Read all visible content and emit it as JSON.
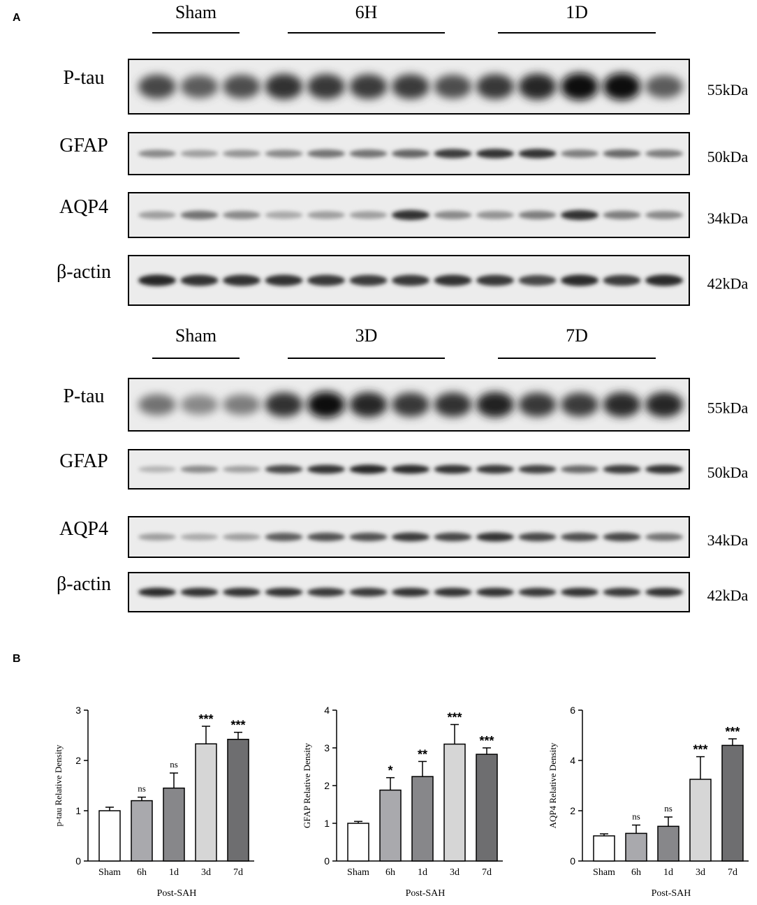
{
  "panel_a": {
    "label": "A",
    "blocks": [
      {
        "groups": [
          "Sham",
          "6H",
          "1D"
        ],
        "rows": [
          {
            "protein": "P-tau",
            "size": "55kDa",
            "intensities": [
              0.75,
              0.65,
              0.72,
              0.85,
              0.82,
              0.8,
              0.8,
              0.72,
              0.82,
              0.9,
              1.0,
              1.0,
              0.65
            ]
          },
          {
            "protein": "GFAP",
            "size": "50kDa",
            "intensities": [
              0.45,
              0.35,
              0.4,
              0.45,
              0.55,
              0.55,
              0.62,
              0.8,
              0.85,
              0.85,
              0.5,
              0.6,
              0.5
            ]
          },
          {
            "protein": "AQP4",
            "size": "34kDa",
            "intensities": [
              0.35,
              0.55,
              0.45,
              0.3,
              0.35,
              0.35,
              0.85,
              0.45,
              0.4,
              0.5,
              0.85,
              0.5,
              0.45
            ]
          },
          {
            "protein": "β-actin",
            "size": "42kDa",
            "intensities": [
              0.9,
              0.85,
              0.85,
              0.85,
              0.82,
              0.8,
              0.82,
              0.85,
              0.82,
              0.75,
              0.88,
              0.8,
              0.88
            ]
          }
        ]
      },
      {
        "groups": [
          "Sham",
          "3D",
          "7D"
        ],
        "rows": [
          {
            "protein": "P-tau",
            "size": "55kDa",
            "intensities": [
              0.55,
              0.45,
              0.5,
              0.85,
              1.0,
              0.9,
              0.82,
              0.85,
              0.92,
              0.82,
              0.8,
              0.88,
              0.9
            ]
          },
          {
            "protein": "GFAP",
            "size": "50kDa",
            "intensities": [
              0.25,
              0.45,
              0.35,
              0.75,
              0.85,
              0.9,
              0.88,
              0.85,
              0.82,
              0.78,
              0.6,
              0.8,
              0.85
            ]
          },
          {
            "protein": "AQP4",
            "size": "34kDa",
            "intensities": [
              0.35,
              0.3,
              0.35,
              0.65,
              0.7,
              0.7,
              0.8,
              0.75,
              0.85,
              0.75,
              0.72,
              0.75,
              0.55
            ]
          },
          {
            "protein": "β-actin",
            "size": "42kDa",
            "intensities": [
              0.88,
              0.85,
              0.85,
              0.85,
              0.82,
              0.82,
              0.85,
              0.85,
              0.85,
              0.82,
              0.85,
              0.82,
              0.85
            ]
          }
        ]
      }
    ]
  },
  "panel_b": {
    "label": "B"
  },
  "chart_data": [
    {
      "type": "bar",
      "categories": [
        "Sham",
        "6h",
        "1d",
        "3d",
        "7d"
      ],
      "values": [
        1.0,
        1.2,
        1.45,
        2.33,
        2.42
      ],
      "errors": [
        0.07,
        0.07,
        0.3,
        0.35,
        0.14
      ],
      "significance": [
        "",
        "ns",
        "ns",
        "***",
        "***"
      ],
      "ylabel": "p-tau Relative Density",
      "xlabel": "Post-SAH",
      "ylim": [
        0,
        3
      ],
      "yticks": [
        0,
        1,
        2,
        3
      ],
      "bar_colors": [
        "#ffffff",
        "#a9a9ad",
        "#87878a",
        "#d6d6d6",
        "#6e6e70"
      ]
    },
    {
      "type": "bar",
      "categories": [
        "Sham",
        "6h",
        "1d",
        "3d",
        "7d"
      ],
      "values": [
        1.0,
        1.88,
        2.24,
        3.1,
        2.83
      ],
      "errors": [
        0.05,
        0.33,
        0.4,
        0.52,
        0.17
      ],
      "significance": [
        "",
        "*",
        "**",
        "***",
        "***"
      ],
      "ylabel": "GFAP Relative Density",
      "xlabel": "Post-SAH",
      "ylim": [
        0,
        4
      ],
      "yticks": [
        0,
        1,
        2,
        3,
        4
      ],
      "bar_colors": [
        "#ffffff",
        "#a9a9ad",
        "#87878a",
        "#d6d6d6",
        "#6e6e70"
      ]
    },
    {
      "type": "bar",
      "categories": [
        "Sham",
        "6h",
        "1d",
        "3d",
        "7d"
      ],
      "values": [
        1.0,
        1.1,
        1.38,
        3.25,
        4.6
      ],
      "errors": [
        0.08,
        0.33,
        0.37,
        0.9,
        0.26
      ],
      "significance": [
        "",
        "ns",
        "ns",
        "***",
        "***"
      ],
      "ylabel": "AQP4 Relative Density",
      "xlabel": "Post-SAH",
      "ylim": [
        0,
        6
      ],
      "yticks": [
        0,
        2,
        4,
        6
      ],
      "bar_colors": [
        "#ffffff",
        "#a9a9ad",
        "#87878a",
        "#d6d6d6",
        "#6e6e70"
      ]
    }
  ]
}
